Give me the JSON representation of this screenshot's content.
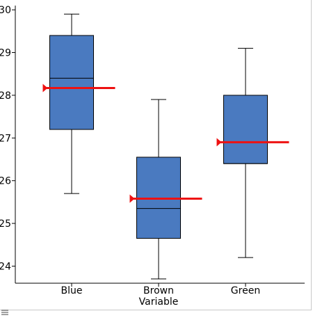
{
  "chart_data": {
    "type": "boxplot",
    "xlabel": "Variable",
    "ylabel": "",
    "categories": [
      "Blue",
      "Brown",
      "Green"
    ],
    "ylim": [
      23.6,
      30.1
    ],
    "yticks": [
      24,
      25,
      26,
      27,
      28,
      29,
      30
    ],
    "box_color": "#4a7ac0",
    "mean_color": "#ee1111",
    "boxes": [
      {
        "category": "Blue",
        "min": 25.7,
        "q1": 27.2,
        "median": 28.4,
        "q3": 29.4,
        "max": 29.9,
        "mean": 28.17
      },
      {
        "category": "Brown",
        "min": 23.7,
        "q1": 24.65,
        "median": 25.35,
        "q3": 26.55,
        "max": 27.9,
        "mean": 25.58
      },
      {
        "category": "Green",
        "min": 24.2,
        "q1": 26.4,
        "median": 26.4,
        "q3": 28.0,
        "max": 29.1,
        "mean": 26.9
      }
    ]
  }
}
